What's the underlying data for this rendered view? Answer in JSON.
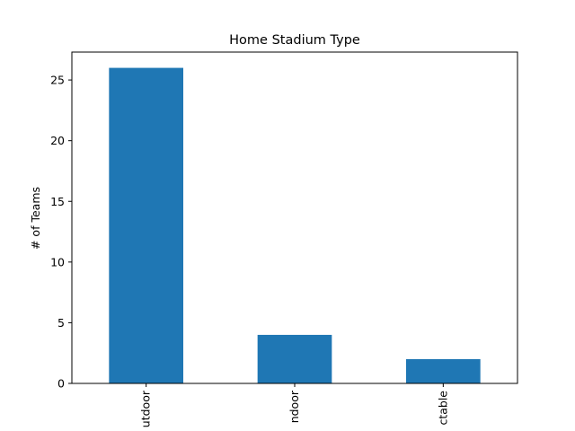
{
  "chart_data": {
    "type": "bar",
    "title": "Home Stadium Type",
    "xlabel": "",
    "ylabel": "# of Teams",
    "categories": [
      "Outdoor",
      "Indoor",
      "Retractable"
    ],
    "category_labels_visible": [
      "utdoor",
      "ndoor",
      "ctable"
    ],
    "values": [
      26,
      4,
      2
    ],
    "ylim": [
      0,
      27.3
    ],
    "yticks": [
      0,
      5,
      10,
      15,
      20,
      25
    ],
    "ytick_labels": [
      "0",
      "5",
      "10",
      "15",
      "20",
      "25"
    ],
    "bar_color": "#1f77b4",
    "grid": false,
    "legend": "none"
  }
}
